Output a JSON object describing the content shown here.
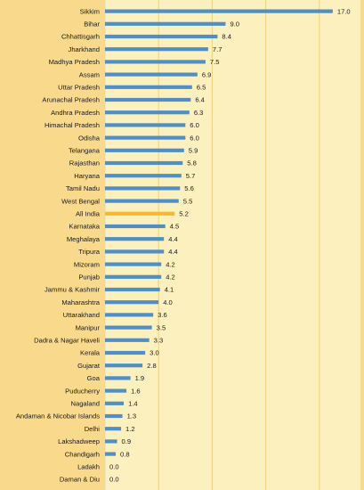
{
  "chart_data": {
    "type": "bar",
    "orientation": "horizontal",
    "categories": [
      "Sikkim",
      "Bihar",
      "Chhattisgarh",
      "Jharkhand",
      "Madhya Pradesh",
      "Assam",
      "Uttar Pradesh",
      "Arunachal Pradesh",
      "Andhra Pradesh",
      "Himachal Pradesh",
      "Odisha",
      "Telangana",
      "Rajasthan",
      "Haryana",
      "Tamil Nadu",
      "West Bengal",
      "All India",
      "Karnataka",
      "Meghalaya",
      "Tripura",
      "Mizoram",
      "Punjab",
      "Jammu & Kashmir",
      "Maharashtra",
      "Uttarakhand",
      "Manipur",
      "Dadra & Nagar Haveli",
      "Kerala",
      "Gujarat",
      "Goa",
      "Puducherry",
      "Nagaland",
      "Andaman & Nicobar Islands",
      "Delhi",
      "Lakshadweep",
      "Chandigarh",
      "Ladakh",
      "Daman & Diu"
    ],
    "values": [
      17.0,
      9.0,
      8.4,
      7.7,
      7.5,
      6.9,
      6.5,
      6.4,
      6.3,
      6.0,
      6.0,
      5.9,
      5.8,
      5.7,
      5.6,
      5.5,
      5.2,
      4.5,
      4.4,
      4.4,
      4.2,
      4.2,
      4.1,
      4.0,
      3.6,
      3.5,
      3.3,
      3.0,
      2.8,
      1.9,
      1.6,
      1.4,
      1.3,
      1.2,
      0.9,
      0.8,
      0.0,
      0.0
    ],
    "value_labels": [
      "17.0",
      "9.0",
      "8.4",
      "7.7",
      "7.5",
      "6.9",
      "6.5",
      "6.4",
      "6.3",
      "6.0",
      "6.0",
      "5.9",
      "5.8",
      "5.7",
      "5.6",
      "5.5",
      "5.2",
      "4.5",
      "4.4",
      "4.4",
      "4.2",
      "4.2",
      "4.1",
      "4.0",
      "3.6",
      "3.5",
      "3.3",
      "3.0",
      "2.8",
      "1.9",
      "1.6",
      "1.4",
      "1.3",
      "1.2",
      "0.9",
      "0.8",
      "0.0",
      "0.0"
    ],
    "highlight_category": "All India",
    "xlim": [
      0,
      18
    ],
    "gridlines": [
      0,
      4,
      8,
      12,
      16
    ],
    "grid": true,
    "colors": {
      "bar": "#4f8fc6",
      "highlight": "#f5b82e",
      "gridline": "#ecd27a",
      "text": "#1a1a1a"
    }
  }
}
